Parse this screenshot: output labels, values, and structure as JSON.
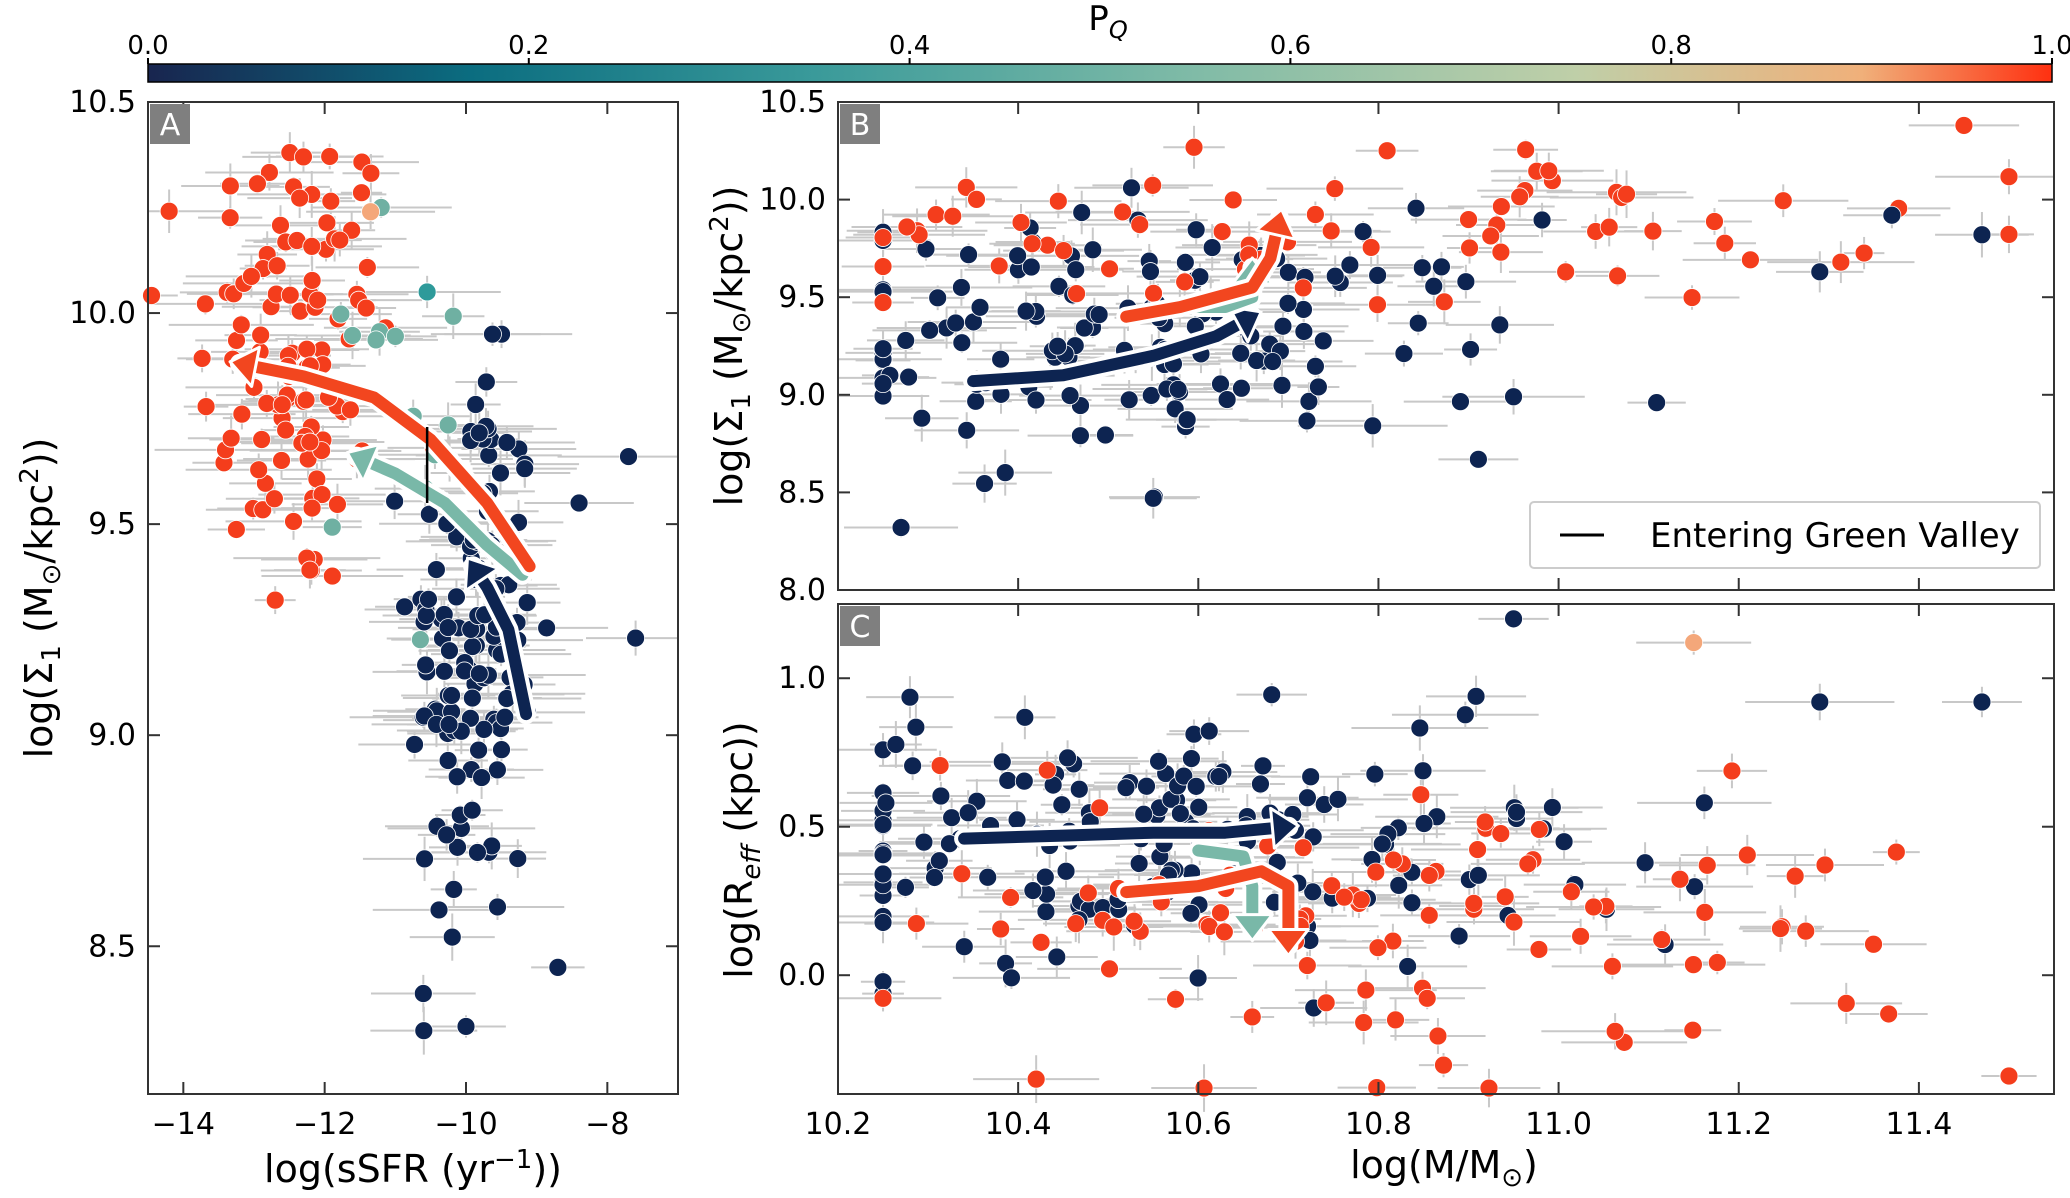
{
  "colorbar": {
    "label": "P",
    "label_sub": "Q",
    "ticks": [
      "0.0",
      "0.2",
      "0.4",
      "0.6",
      "0.8",
      "1.0"
    ],
    "stops": [
      "#18254f",
      "#0b6d80",
      "#3a9a9a",
      "#80bba7",
      "#bfcfa8",
      "#f0b07a",
      "#ff3010"
    ]
  },
  "colors": {
    "quenched": "#f43d1c",
    "star_forming": "#0d2451",
    "green_valley": "#2e9a9a",
    "light_orange": "#f4a77a",
    "track_red": "#f2461f",
    "track_green": "#79b8a8",
    "track_navy": "#0d2451",
    "label_box": "#7f7f7f",
    "errorbar": "#c8c8c8"
  },
  "panels": {
    "A": {
      "letter": "A",
      "xlabel": "log(sSFR (yr",
      "xlabel_sup": "−1",
      "xlabel_end": "))",
      "ylabel": "log(Σ",
      "ylabel_sub": "1",
      "ylabel_mid": " (M",
      "ylabel_sun": "⊙",
      "ylabel_end": "/kpc",
      "ylabel_sup": "2",
      "ylabel_close": "))",
      "xticks": [
        "−14",
        "−12",
        "−10",
        "−8"
      ],
      "yticks": [
        "8.5",
        "9.0",
        "9.5",
        "10.0",
        "10.5"
      ]
    },
    "B": {
      "letter": "B",
      "ylabel": "log(Σ",
      "ylabel_sub": "1",
      "ylabel_mid": " (M",
      "ylabel_sun": "⊙",
      "ylabel_end": "/kpc",
      "ylabel_sup": "2",
      "ylabel_close": "))",
      "yticks": [
        "8.0",
        "8.5",
        "9.0",
        "9.5",
        "10.0",
        "10.5"
      ],
      "legend_label": "Entering Green Valley"
    },
    "C": {
      "letter": "C",
      "xlabel": "log(M/M",
      "xlabel_sun": "⊙",
      "xlabel_end": ")",
      "ylabel": "log(R",
      "ylabel_sub": "eff",
      "ylabel_end": " (kpc))",
      "xticks": [
        "10.2",
        "10.4",
        "10.6",
        "10.8",
        "11.0",
        "11.2",
        "11.4"
      ],
      "yticks": [
        "0.0",
        "0.5",
        "1.0"
      ]
    }
  },
  "chart_data": [
    {
      "panel": "A",
      "type": "scatter",
      "xlim": [
        -14.5,
        -7
      ],
      "ylim": [
        8.15,
        10.5
      ],
      "color_encoding": "P_Q (probability of being quenched), 0 to 1",
      "groups": [
        {
          "pq": 1.0,
          "count": 110,
          "x_center": -12.4,
          "x_spread": 0.7,
          "y_center": 9.9,
          "y_spread": 0.3,
          "y_range": [
            9.3,
            10.38
          ]
        },
        {
          "pq": 0.0,
          "count": 130,
          "x_center": -9.9,
          "x_spread": 0.45,
          "y_center": 9.2,
          "y_spread": 0.35,
          "y_range": [
            8.3,
            9.95
          ]
        },
        {
          "pq": 0.45,
          "count": 12,
          "x_center": -10.9,
          "x_spread": 0.4,
          "y_center": 9.7,
          "y_spread": 0.25,
          "y_range": [
            9.2,
            10.05
          ]
        }
      ],
      "points": [
        {
          "x": -12.3,
          "y": 10.37,
          "pq": 1.0
        },
        {
          "x": -11.2,
          "y": 10.25,
          "pq": 0.55
        },
        {
          "x": -11.35,
          "y": 10.24,
          "pq": 0.9
        },
        {
          "x": -10.55,
          "y": 10.05,
          "pq": 0.3
        },
        {
          "x": -7.7,
          "y": 9.66,
          "pq": 0.0
        },
        {
          "x": -8.4,
          "y": 9.55,
          "pq": 0.0
        },
        {
          "x": -7.6,
          "y": 9.23,
          "pq": 0.0
        },
        {
          "x": -10.0,
          "y": 8.31,
          "pq": 0.0
        },
        {
          "x": -8.7,
          "y": 8.45,
          "pq": 0.0
        },
        {
          "x": -12.7,
          "y": 9.32,
          "pq": 1.0
        }
      ],
      "tracks": [
        {
          "color": "navy",
          "x": [
            -9.15,
            -9.4,
            -9.7,
            -9.9
          ],
          "y": [
            9.05,
            9.25,
            9.35,
            9.4
          ]
        },
        {
          "color": "green",
          "x": [
            -9.2,
            -9.7,
            -10.3,
            -11.0,
            -11.55
          ],
          "y": [
            9.38,
            9.45,
            9.55,
            9.62,
            9.66
          ]
        },
        {
          "color": "red",
          "x": [
            -9.1,
            -9.7,
            -10.5,
            -11.3,
            -12.3,
            -13.2
          ],
          "y": [
            9.4,
            9.55,
            9.7,
            9.8,
            9.85,
            9.88
          ]
        }
      ],
      "entering_green_valley_line": {
        "x": -10.55,
        "y_from": 9.55,
        "y_to": 9.73
      }
    },
    {
      "panel": "B",
      "type": "scatter",
      "xlim": [
        10.2,
        11.55
      ],
      "ylim": [
        8.0,
        10.5
      ],
      "color_encoding": "P_Q",
      "groups": [
        {
          "pq": 0.0,
          "count": 150,
          "x_center": 10.55,
          "x_spread": 0.2,
          "y_center": 9.3,
          "y_spread": 0.3
        },
        {
          "pq": 1.0,
          "count": 70,
          "x_center": 10.75,
          "x_spread": 0.3,
          "y_center": 9.85,
          "y_spread": 0.2
        }
      ],
      "points": [
        {
          "x": 11.45,
          "y": 10.38,
          "pq": 1.0
        },
        {
          "x": 11.37,
          "y": 9.92,
          "pq": 0.0
        },
        {
          "x": 11.47,
          "y": 9.82,
          "pq": 0.0
        },
        {
          "x": 11.29,
          "y": 9.63,
          "pq": 0.0
        },
        {
          "x": 10.27,
          "y": 8.32,
          "pq": 0.0
        },
        {
          "x": 10.55,
          "y": 8.47,
          "pq": 0.0
        },
        {
          "x": 10.95,
          "y": 8.99,
          "pq": 0.0
        }
      ],
      "tracks": [
        {
          "color": "navy",
          "x": [
            10.35,
            10.45,
            10.55,
            10.62,
            10.66
          ],
          "y": [
            9.07,
            9.1,
            9.2,
            9.3,
            9.4
          ]
        },
        {
          "color": "green",
          "x": [
            10.6,
            10.63,
            10.66,
            10.66
          ],
          "y": [
            9.45,
            9.45,
            9.5,
            9.65
          ]
        },
        {
          "color": "red",
          "x": [
            10.52,
            10.58,
            10.66,
            10.68,
            10.69
          ],
          "y": [
            9.4,
            9.45,
            9.55,
            9.7,
            9.9
          ]
        }
      ],
      "legend": {
        "position": "lower right",
        "entries": [
          {
            "label": "Entering Green Valley",
            "style": "black line"
          }
        ]
      }
    },
    {
      "panel": "C",
      "type": "scatter",
      "xlim": [
        10.2,
        11.55
      ],
      "ylim": [
        -0.4,
        1.25
      ],
      "color_encoding": "P_Q",
      "groups": [
        {
          "pq": 0.0,
          "count": 170,
          "x_center": 10.55,
          "x_spread": 0.25,
          "y_center": 0.45,
          "y_spread": 0.22
        },
        {
          "pq": 1.0,
          "count": 100,
          "x_center": 10.85,
          "x_spread": 0.3,
          "y_center": 0.2,
          "y_spread": 0.22
        }
      ],
      "points": [
        {
          "x": 10.95,
          "y": 1.2,
          "pq": 0.0
        },
        {
          "x": 11.15,
          "y": 1.12,
          "pq": 0.9
        },
        {
          "x": 11.29,
          "y": 0.92,
          "pq": 0.0
        },
        {
          "x": 11.47,
          "y": 0.92,
          "pq": 0.0
        },
        {
          "x": 10.42,
          "y": -0.35,
          "pq": 1.0
        }
      ],
      "tracks": [
        {
          "color": "navy",
          "x": [
            10.34,
            10.45,
            10.55,
            10.63,
            10.7
          ],
          "y": [
            0.46,
            0.47,
            0.48,
            0.48,
            0.5
          ]
        },
        {
          "color": "green",
          "x": [
            10.6,
            10.65,
            10.66,
            10.66
          ],
          "y": [
            0.42,
            0.4,
            0.3,
            0.15
          ]
        },
        {
          "color": "red",
          "x": [
            10.52,
            10.6,
            10.67,
            10.7,
            10.7
          ],
          "y": [
            0.28,
            0.3,
            0.35,
            0.3,
            0.1
          ]
        }
      ]
    }
  ]
}
